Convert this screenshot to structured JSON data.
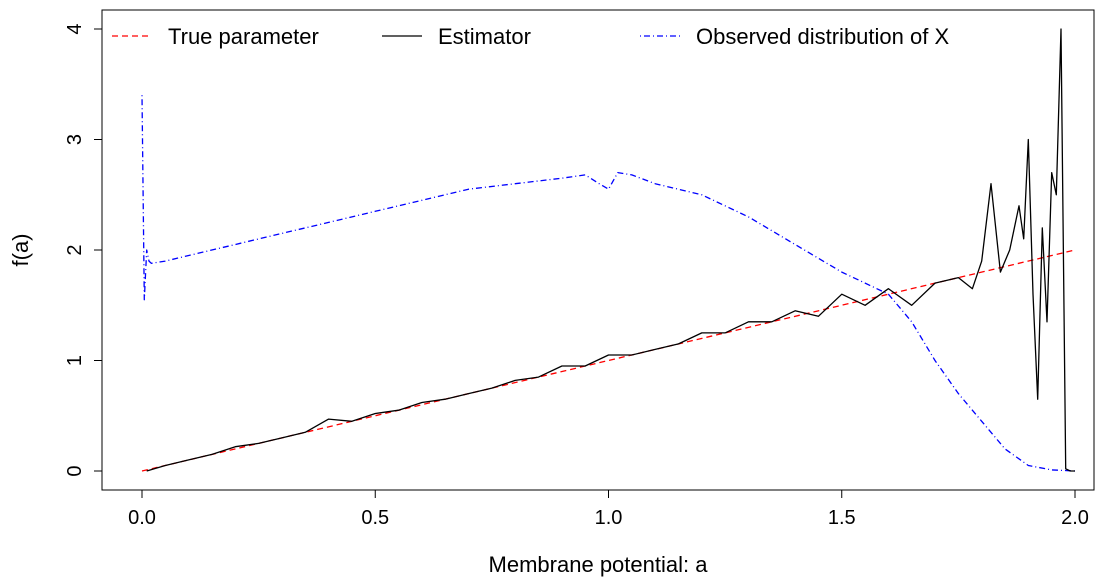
{
  "chart_data": {
    "type": "line",
    "title": "",
    "xlabel": "Membrane potential: a",
    "ylabel": "f(a)",
    "xlim": [
      0.0,
      2.0
    ],
    "ylim": [
      0.0,
      4.0
    ],
    "x_ticks": [
      0.0,
      0.5,
      1.0,
      1.5,
      2.0
    ],
    "x_tick_labels": [
      "0.0",
      "0.5",
      "1.0",
      "1.5",
      "2.0"
    ],
    "y_ticks": [
      0,
      1,
      2,
      3,
      4
    ],
    "y_tick_labels": [
      "0",
      "1",
      "2",
      "3",
      "4"
    ],
    "grid": false,
    "legend_position": "top",
    "series": [
      {
        "name": "True parameter",
        "color": "#ff0000",
        "style": "dashed",
        "x": [
          0.0,
          2.0
        ],
        "y": [
          0.0,
          2.0
        ]
      },
      {
        "name": "Estimator",
        "color": "#000000",
        "style": "solid",
        "x": [
          0.01,
          0.05,
          0.1,
          0.15,
          0.2,
          0.25,
          0.3,
          0.35,
          0.4,
          0.45,
          0.5,
          0.55,
          0.6,
          0.65,
          0.7,
          0.75,
          0.8,
          0.85,
          0.9,
          0.95,
          1.0,
          1.05,
          1.1,
          1.15,
          1.2,
          1.25,
          1.3,
          1.35,
          1.4,
          1.45,
          1.5,
          1.55,
          1.6,
          1.65,
          1.7,
          1.75,
          1.78,
          1.8,
          1.82,
          1.84,
          1.86,
          1.88,
          1.89,
          1.9,
          1.91,
          1.92,
          1.93,
          1.94,
          1.95,
          1.96,
          1.97,
          1.98,
          1.99,
          2.0
        ],
        "y": [
          0.0,
          0.05,
          0.1,
          0.15,
          0.22,
          0.25,
          0.3,
          0.35,
          0.47,
          0.45,
          0.52,
          0.55,
          0.62,
          0.65,
          0.7,
          0.75,
          0.82,
          0.85,
          0.95,
          0.95,
          1.05,
          1.05,
          1.1,
          1.15,
          1.25,
          1.25,
          1.35,
          1.35,
          1.45,
          1.4,
          1.6,
          1.5,
          1.65,
          1.5,
          1.7,
          1.75,
          1.65,
          1.9,
          2.6,
          1.8,
          2.0,
          2.4,
          2.1,
          3.0,
          1.6,
          0.65,
          2.2,
          1.35,
          2.7,
          2.5,
          4.0,
          0.02,
          0.0,
          0.0
        ]
      },
      {
        "name": "Observed distribution of X",
        "color": "#0000ff",
        "style": "dotdash",
        "x": [
          0.0,
          0.005,
          0.01,
          0.015,
          0.02,
          0.05,
          0.1,
          0.2,
          0.3,
          0.4,
          0.5,
          0.6,
          0.7,
          0.8,
          0.9,
          0.95,
          0.98,
          1.0,
          1.02,
          1.05,
          1.1,
          1.2,
          1.3,
          1.4,
          1.5,
          1.55,
          1.6,
          1.65,
          1.7,
          1.75,
          1.8,
          1.85,
          1.9,
          1.95,
          2.0
        ],
        "y": [
          3.4,
          1.55,
          2.0,
          1.9,
          1.88,
          1.9,
          1.95,
          2.05,
          2.15,
          2.25,
          2.35,
          2.45,
          2.55,
          2.6,
          2.65,
          2.68,
          2.6,
          2.55,
          2.7,
          2.68,
          2.6,
          2.5,
          2.3,
          2.05,
          1.8,
          1.7,
          1.6,
          1.35,
          1.0,
          0.7,
          0.45,
          0.2,
          0.05,
          0.01,
          0.0
        ]
      }
    ]
  }
}
